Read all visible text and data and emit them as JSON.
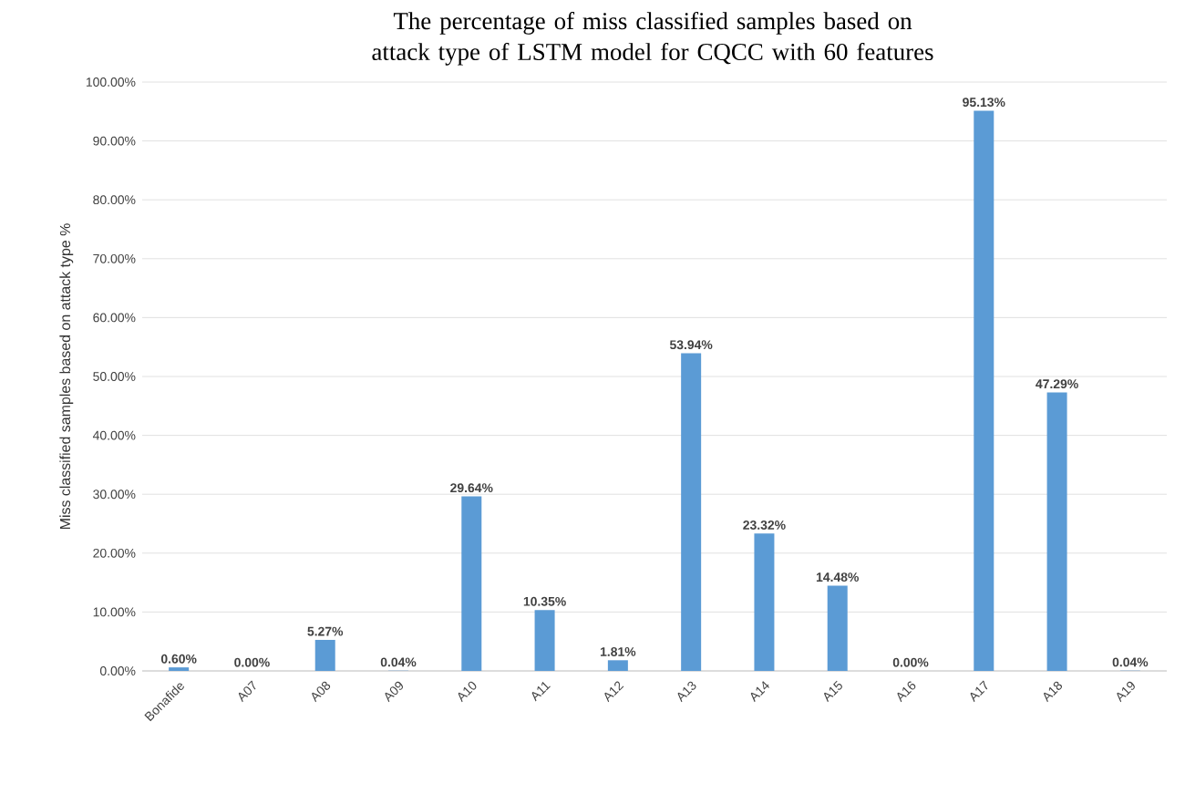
{
  "chart_data": {
    "type": "bar",
    "title": "The percentage of miss classified samples based on attack type of LSTM model for CQCC with 60 features",
    "ylabel": "Miss classified samples based on attack type %",
    "categories": [
      "Bonafide",
      "A07",
      "A08",
      "A09",
      "A10",
      "A11",
      "A12",
      "A13",
      "A14",
      "A15",
      "A16",
      "A17",
      "A18",
      "A19"
    ],
    "values": [
      0.6,
      0.0,
      5.27,
      0.04,
      29.64,
      10.35,
      1.81,
      53.94,
      23.32,
      14.48,
      0.0,
      95.13,
      47.29,
      0.04
    ],
    "value_labels": [
      "0.60%",
      "0.00%",
      "5.27%",
      "0.04%",
      "29.64%",
      "10.35%",
      "1.81%",
      "53.94%",
      "23.32%",
      "14.48%",
      "0.00%",
      "95.13%",
      "47.29%",
      "0.04%"
    ],
    "color": "#5b9bd5",
    "ylim": [
      0,
      100
    ],
    "yticks": [
      {
        "value": 0,
        "label": "0.00%"
      },
      {
        "value": 10,
        "label": "10.00%"
      },
      {
        "value": 20,
        "label": "20.00%"
      },
      {
        "value": 30,
        "label": "30.00%"
      },
      {
        "value": 40,
        "label": "40.00%"
      },
      {
        "value": 50,
        "label": "50.00%"
      },
      {
        "value": 60,
        "label": "60.00%"
      },
      {
        "value": 70,
        "label": "70.00%"
      },
      {
        "value": 80,
        "label": "80.00%"
      },
      {
        "value": 90,
        "label": "90.00%"
      },
      {
        "value": 100,
        "label": "100.00%"
      }
    ],
    "grid": "y"
  }
}
